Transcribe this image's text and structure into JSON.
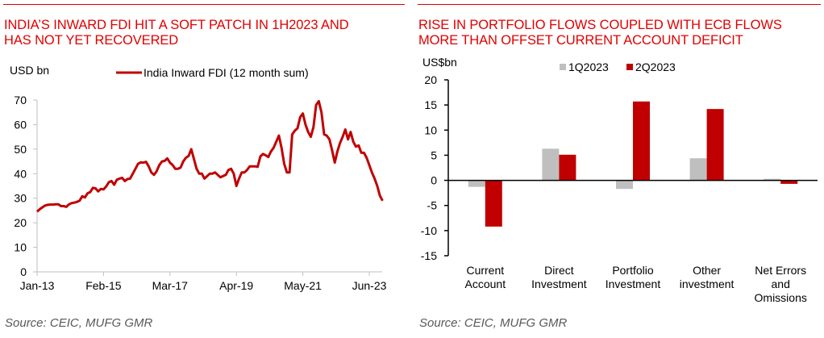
{
  "charts": [
    {
      "id": "left",
      "title": "INDIA’S INWARD FDI HIT A SOFT PATCH IN 1H2023 AND\nHAS NOT YET RECOVERED",
      "source": "Source: CEIC, MUFG GMR"
    },
    {
      "id": "right",
      "title": "RISE IN PORTFOLIO FLOWS COUPLED WITH ECB FLOWS\nMORE THAN OFFSET CURRENT ACCOUNT DEFICIT",
      "source": "Source: CEIC, MUFG GMR"
    }
  ],
  "colors": {
    "title": "#e00000",
    "series_red": "#c00000",
    "series_grey": "#bfbfbf",
    "axis_light": "#bfbfbf",
    "axis_dark": "#000000",
    "source_text": "#595959"
  },
  "chart_data": [
    {
      "type": "line",
      "title": "INDIA’S INWARD FDI HIT A SOFT PATCH IN 1H2023 AND HAS NOT YET RECOVERED",
      "ylabel": "USD bn",
      "xlabel": "",
      "ylim": [
        0,
        70
      ],
      "yticks": [
        0,
        10,
        20,
        30,
        40,
        50,
        60,
        70
      ],
      "xtick_labels": [
        "Jan-13",
        "Feb-15",
        "Mar-17",
        "Apr-19",
        "May-21",
        "Jun-23"
      ],
      "xtick_index": [
        0,
        25,
        50,
        75,
        100,
        125
      ],
      "grid": false,
      "legend": {
        "placement": "top-center",
        "entries": [
          "India Inward FDI (12 month sum)"
        ]
      },
      "series": [
        {
          "name": "India Inward FDI (12 month sum)",
          "x_start": "Jan-13",
          "frequency": "monthly",
          "values": [
            24.5,
            25.5,
            26.3,
            27.0,
            27.3,
            27.4,
            27.4,
            27.5,
            27.5,
            26.8,
            26.8,
            26.5,
            27.5,
            28.0,
            28.2,
            28.5,
            29.0,
            30.8,
            30.3,
            32.0,
            32.5,
            34.2,
            34.0,
            32.8,
            33.8,
            33.6,
            34.8,
            36.5,
            37.0,
            35.5,
            37.5,
            38.0,
            38.3,
            37.0,
            37.8,
            38.0,
            40.0,
            42.0,
            44.0,
            44.6,
            44.5,
            44.8,
            43.0,
            40.5,
            39.5,
            41.0,
            43.5,
            45.0,
            45.2,
            46.2,
            44.5,
            43.5,
            42.0,
            42.0,
            42.5,
            45.0,
            46.5,
            47.2,
            50.0,
            46.0,
            42.0,
            40.0,
            40.0,
            38.0,
            39.0,
            40.0,
            40.0,
            40.5,
            39.5,
            38.5,
            39.0,
            39.5,
            41.5,
            42.0,
            40.0,
            35.0,
            38.0,
            40.5,
            40.5,
            41.5,
            43.0,
            43.0,
            43.0,
            42.8,
            47.0,
            48.0,
            47.5,
            46.8,
            49.0,
            50.5,
            53.0,
            55.5,
            50.5,
            44.0,
            40.5,
            40.5,
            56.0,
            57.5,
            58.5,
            63.0,
            64.5,
            60.0,
            57.0,
            55.0,
            59.0,
            68.0,
            69.5,
            65.0,
            56.0,
            55.5,
            54.0,
            49.5,
            44.5,
            49.0,
            52.5,
            55.0,
            58.0,
            54.0,
            57.0,
            53.0,
            51.0,
            51.5,
            48.5,
            48.5,
            46.5,
            43.5,
            40.5,
            38.0,
            35.0,
            31.0,
            29.0
          ]
        }
      ]
    },
    {
      "type": "bar",
      "title": "RISE IN PORTFOLIO FLOWS COUPLED WITH ECB FLOWS MORE THAN OFFSET CURRENT ACCOUNT DEFICIT",
      "ylabel": "US$bn",
      "xlabel": "",
      "ylim": [
        -15,
        20
      ],
      "yticks": [
        -15,
        -10,
        -5,
        0,
        5,
        10,
        15,
        20
      ],
      "grid": false,
      "legend": {
        "placement": "top-center",
        "entries": [
          "1Q2023",
          "2Q2023"
        ]
      },
      "categories": [
        "Current\nAccount",
        "Direct\nInvestment",
        "Portfolio\nInvestment",
        "Other\ninvestment",
        "Net Errors\nand\nOmissions"
      ],
      "series": [
        {
          "name": "1Q2023",
          "values": [
            -1.3,
            6.3,
            -1.7,
            4.4,
            0.3
          ]
        },
        {
          "name": "2Q2023",
          "values": [
            -9.2,
            5.1,
            15.7,
            14.2,
            -0.7
          ]
        }
      ]
    }
  ]
}
